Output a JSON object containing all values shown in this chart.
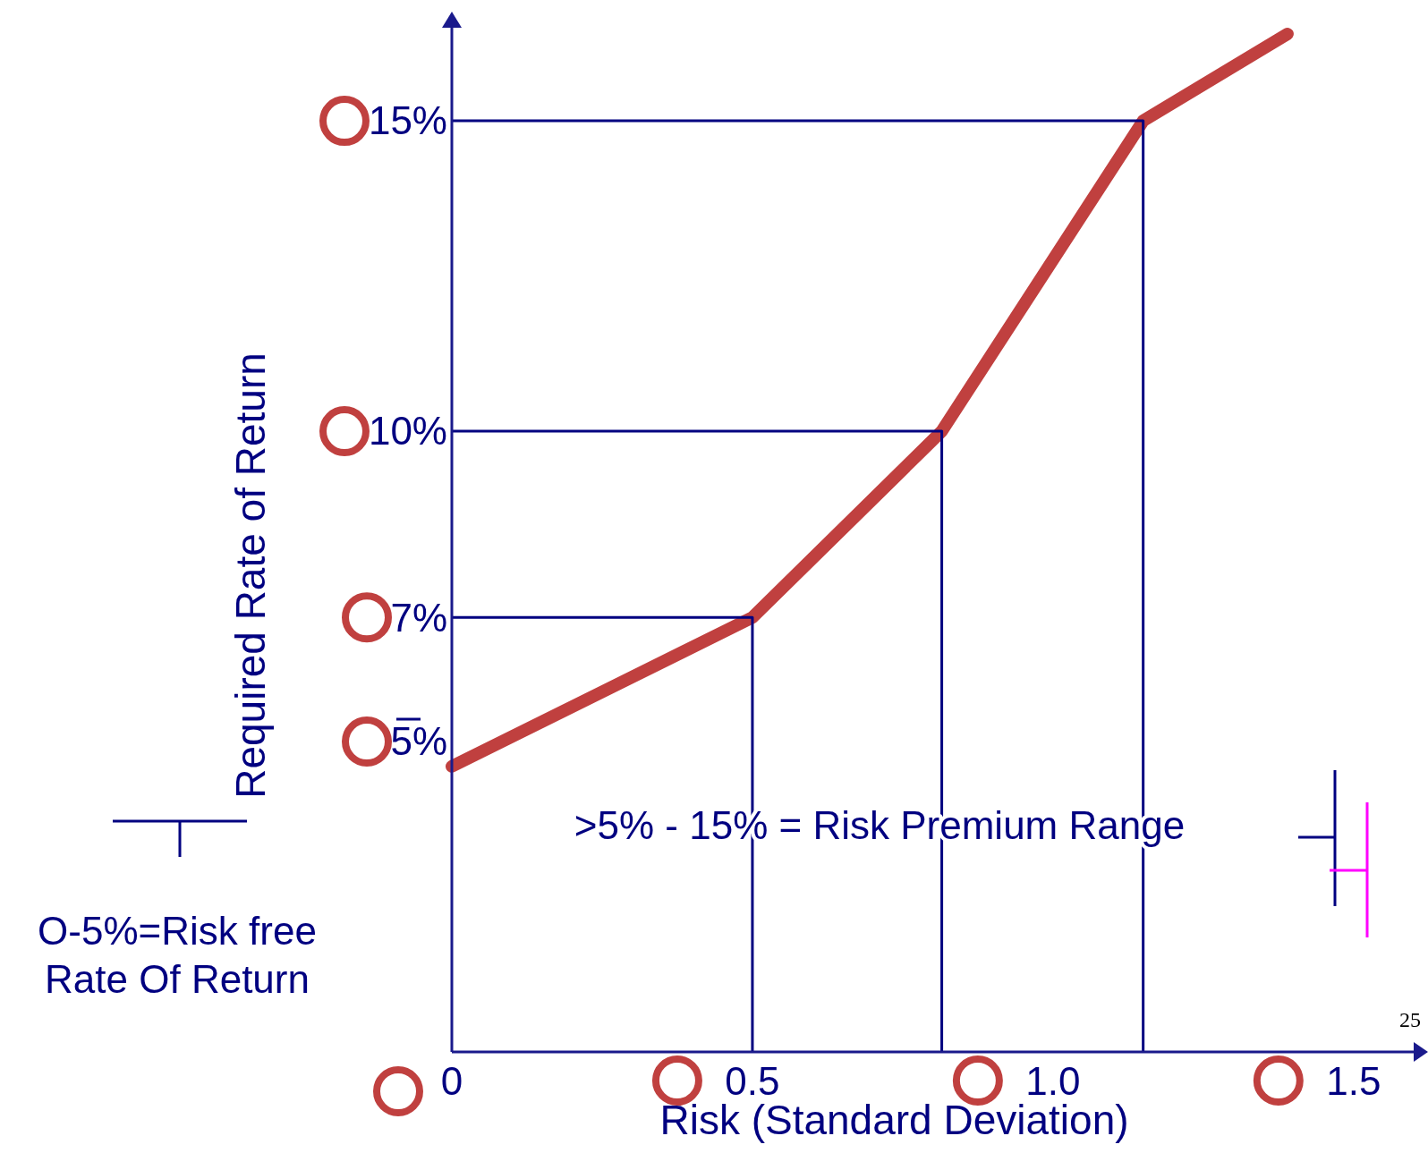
{
  "chart_data": {
    "type": "line",
    "xlabel": "Risk (Standard Deviation)",
    "ylabel": "Required Rate of Return",
    "xlim": [
      0,
      1.6
    ],
    "ylim": [
      0,
      16.5
    ],
    "xticks": [
      0,
      0.5,
      {
        "value": 1,
        "label": "1.0"
      },
      1.5
    ],
    "yticks": [
      {
        "value": 5,
        "label": "5%"
      },
      {
        "value": 7,
        "label": "7%"
      },
      {
        "value": 10,
        "label": "10%"
      },
      {
        "value": 15,
        "label": "15%"
      }
    ],
    "series": [
      {
        "color": "#c0403f",
        "x": [
          0,
          0.5,
          0.815,
          1.15,
          1.39
        ],
        "values": [
          4.6,
          7,
          10,
          15,
          16.4
        ]
      },
      {
        "color": "#000080",
        "x": [
          0,
          0.5,
          0.5
        ],
        "values": [
          7,
          7,
          0
        ]
      },
      {
        "color": "#000080",
        "x": [
          0,
          0.815,
          0.815
        ],
        "values": [
          10,
          10,
          0
        ]
      },
      {
        "color": "#000080",
        "x": [
          0,
          1.15,
          1.15
        ],
        "values": [
          15,
          15,
          0
        ]
      }
    ],
    "annotations": [
      ">5% - 15% = Risk Premium Range",
      "O-5%=Risk free Rate Of Return",
      "25"
    ]
  }
}
